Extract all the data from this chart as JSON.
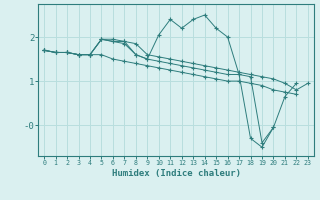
{
  "xlabel": "Humidex (Indice chaleur)",
  "bg_color": "#daf0f0",
  "grid_color": "#b8dede",
  "line_color": "#2e7d7d",
  "xlim": [
    -0.5,
    23.5
  ],
  "ylim": [
    -0.7,
    2.75
  ],
  "yticks": [
    0.0,
    1.0,
    2.0
  ],
  "ytick_labels": [
    "-0",
    "1",
    "2"
  ],
  "xticks": [
    0,
    1,
    2,
    3,
    4,
    5,
    6,
    7,
    8,
    9,
    10,
    11,
    12,
    13,
    14,
    15,
    16,
    17,
    18,
    19,
    20,
    21,
    22,
    23
  ],
  "series": [
    [
      1.7,
      1.65,
      1.65,
      1.6,
      1.6,
      1.95,
      1.95,
      1.9,
      1.85,
      1.6,
      1.55,
      1.5,
      1.45,
      1.4,
      1.35,
      1.3,
      1.25,
      1.2,
      1.15,
      1.1,
      1.05,
      0.95,
      0.8,
      0.95
    ],
    [
      1.7,
      1.65,
      1.65,
      1.6,
      1.6,
      1.95,
      1.9,
      1.85,
      1.6,
      1.5,
      2.05,
      2.4,
      2.2,
      2.4,
      2.5,
      2.2,
      2.0,
      1.15,
      -0.3,
      -0.5,
      -0.05,
      null,
      null,
      null
    ],
    [
      1.7,
      1.65,
      1.65,
      1.6,
      1.6,
      1.95,
      1.9,
      1.9,
      1.6,
      1.5,
      1.45,
      1.4,
      1.35,
      1.3,
      1.25,
      1.2,
      1.15,
      1.15,
      1.1,
      -0.4,
      -0.05,
      0.65,
      0.95,
      null
    ],
    [
      1.7,
      1.65,
      1.65,
      1.6,
      1.6,
      1.6,
      1.5,
      1.45,
      1.4,
      1.35,
      1.3,
      1.25,
      1.2,
      1.15,
      1.1,
      1.05,
      1.0,
      1.0,
      0.95,
      0.9,
      0.8,
      0.75,
      0.7,
      null
    ]
  ]
}
